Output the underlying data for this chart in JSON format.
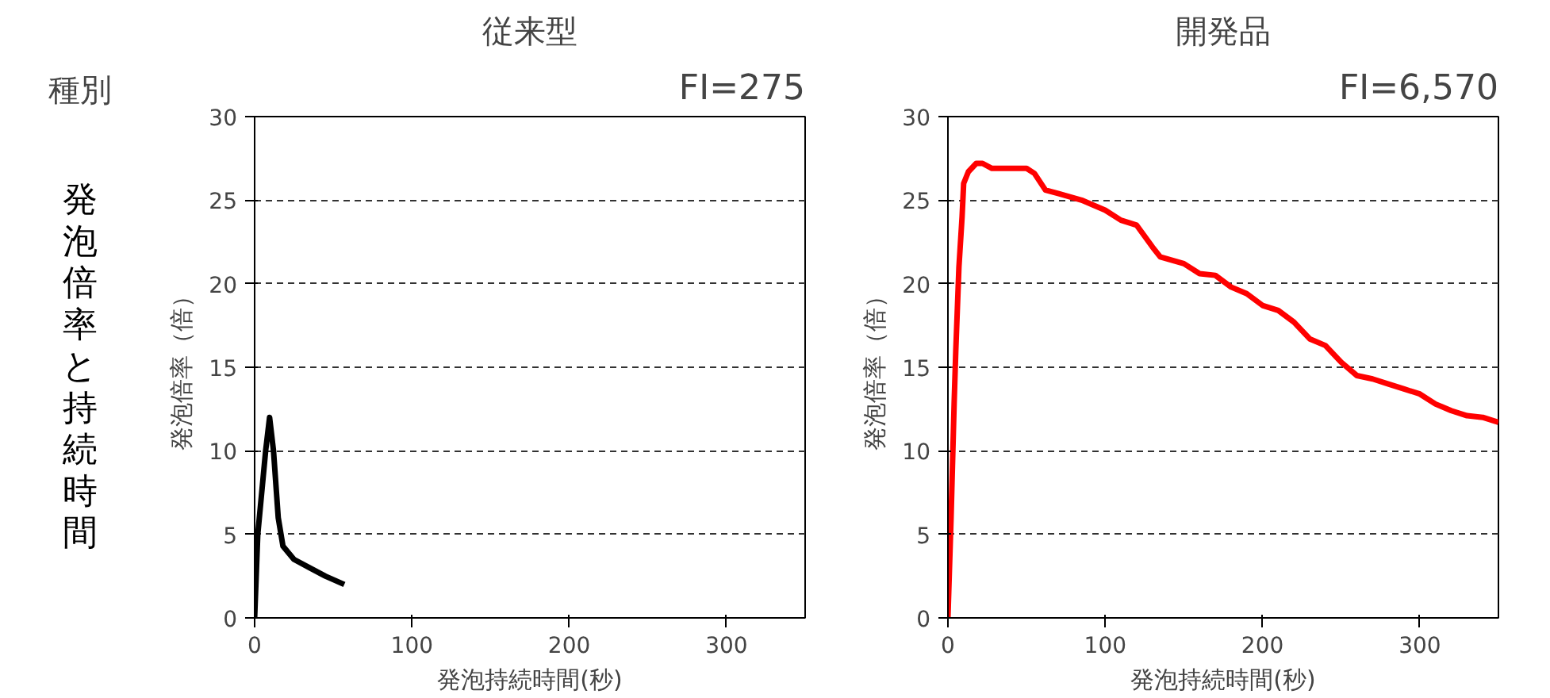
{
  "chart_data": [
    {
      "type": "line",
      "title": "従来型",
      "subtitle": "FI=275",
      "xlabel": "発泡持続時間(秒)",
      "ylabel": "発泡倍率（倍）",
      "annotations": [
        "種別",
        "発泡倍率と持続時間"
      ],
      "x": [
        0,
        2,
        5,
        7,
        9.5,
        12,
        15,
        18,
        25,
        35,
        45,
        57
      ],
      "series": [
        {
          "color": "#000000",
          "values": [
            0,
            5,
            8,
            10,
            12,
            10,
            6,
            4.3,
            3.5,
            3,
            2.5,
            2
          ]
        }
      ],
      "xlim": [
        0,
        350
      ],
      "xticks": [
        0,
        100,
        200,
        300
      ],
      "ylim": [
        0,
        30
      ],
      "yticks": [
        0,
        5,
        10,
        15,
        20,
        25,
        30
      ],
      "grid": "y",
      "line_style": "solid"
    },
    {
      "type": "line",
      "title": "開発品",
      "subtitle": "FI=6,570",
      "xlabel": "発泡持続時間(秒)",
      "ylabel": "発泡倍率（倍）",
      "x": [
        0,
        2,
        4,
        5,
        7,
        9,
        10,
        13,
        18,
        22,
        28,
        40,
        50,
        55,
        62,
        70,
        85,
        100,
        110,
        120,
        130,
        135,
        150,
        160,
        170,
        180,
        190,
        200,
        210,
        220,
        230,
        240,
        250,
        260,
        270,
        280,
        290,
        300,
        310,
        320,
        330,
        340,
        350
      ],
      "series": [
        {
          "color": "#ff0000",
          "values": [
            0,
            6,
            13,
            16,
            21,
            24,
            26,
            26.7,
            27.2,
            27.2,
            26.9,
            26.9,
            26.9,
            26.6,
            25.6,
            25.4,
            25,
            24.4,
            23.8,
            23.5,
            22.2,
            21.6,
            21.2,
            20.6,
            20.5,
            19.8,
            19.4,
            18.7,
            18.4,
            17.7,
            16.7,
            16.3,
            15.3,
            14.5,
            14.3,
            14.0,
            13.7,
            13.4,
            12.8,
            12.4,
            12.1,
            12.0,
            11.7
          ]
        }
      ],
      "xlim": [
        0,
        350
      ],
      "xticks": [
        0,
        100,
        200,
        300
      ],
      "ylim": [
        0,
        30
      ],
      "yticks": [
        0,
        5,
        10,
        15,
        20,
        25,
        30
      ],
      "grid": "y",
      "line_style": "solid"
    }
  ]
}
